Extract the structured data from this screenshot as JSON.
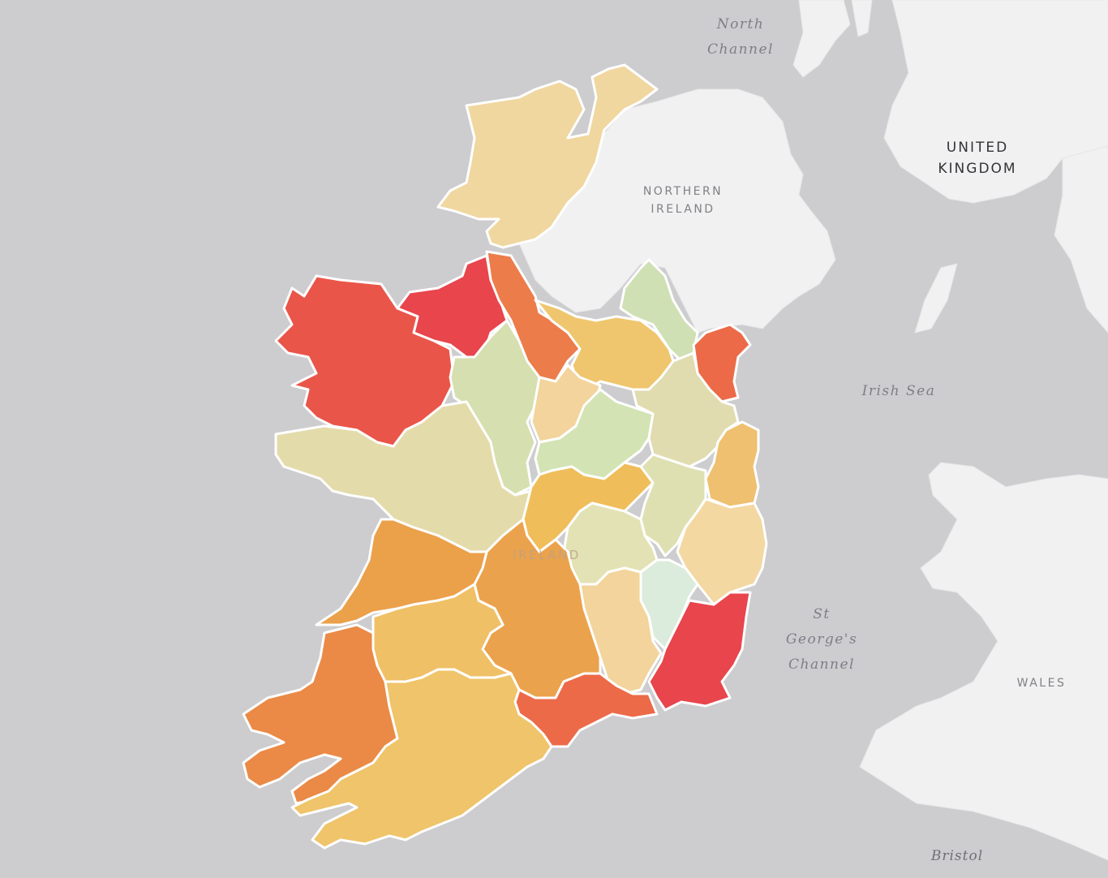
{
  "map": {
    "labels": {
      "north_channel_1": "North",
      "north_channel_2": "Channel",
      "uk_1": "UNITED",
      "uk_2": "KINGDOM",
      "ni_1": "NORTHERN",
      "ni_2": "IRELAND",
      "irish_sea": "Irish Sea",
      "st_georges_1": "St",
      "st_georges_2": "George's",
      "st_georges_3": "Channel",
      "wales": "WALES",
      "ireland": "IRELAND",
      "bristol": "Bristol"
    },
    "colors": {
      "water": "#cdcdd0",
      "land": "#f1f1f2",
      "border": "#ffffff"
    },
    "choropleth_palette": [
      "#dcecdc",
      "#cfe0b4",
      "#e4dbab",
      "#f2d49c",
      "#efc66e",
      "#eb9e4e",
      "#ec7c4a",
      "#e8454c"
    ]
  }
}
